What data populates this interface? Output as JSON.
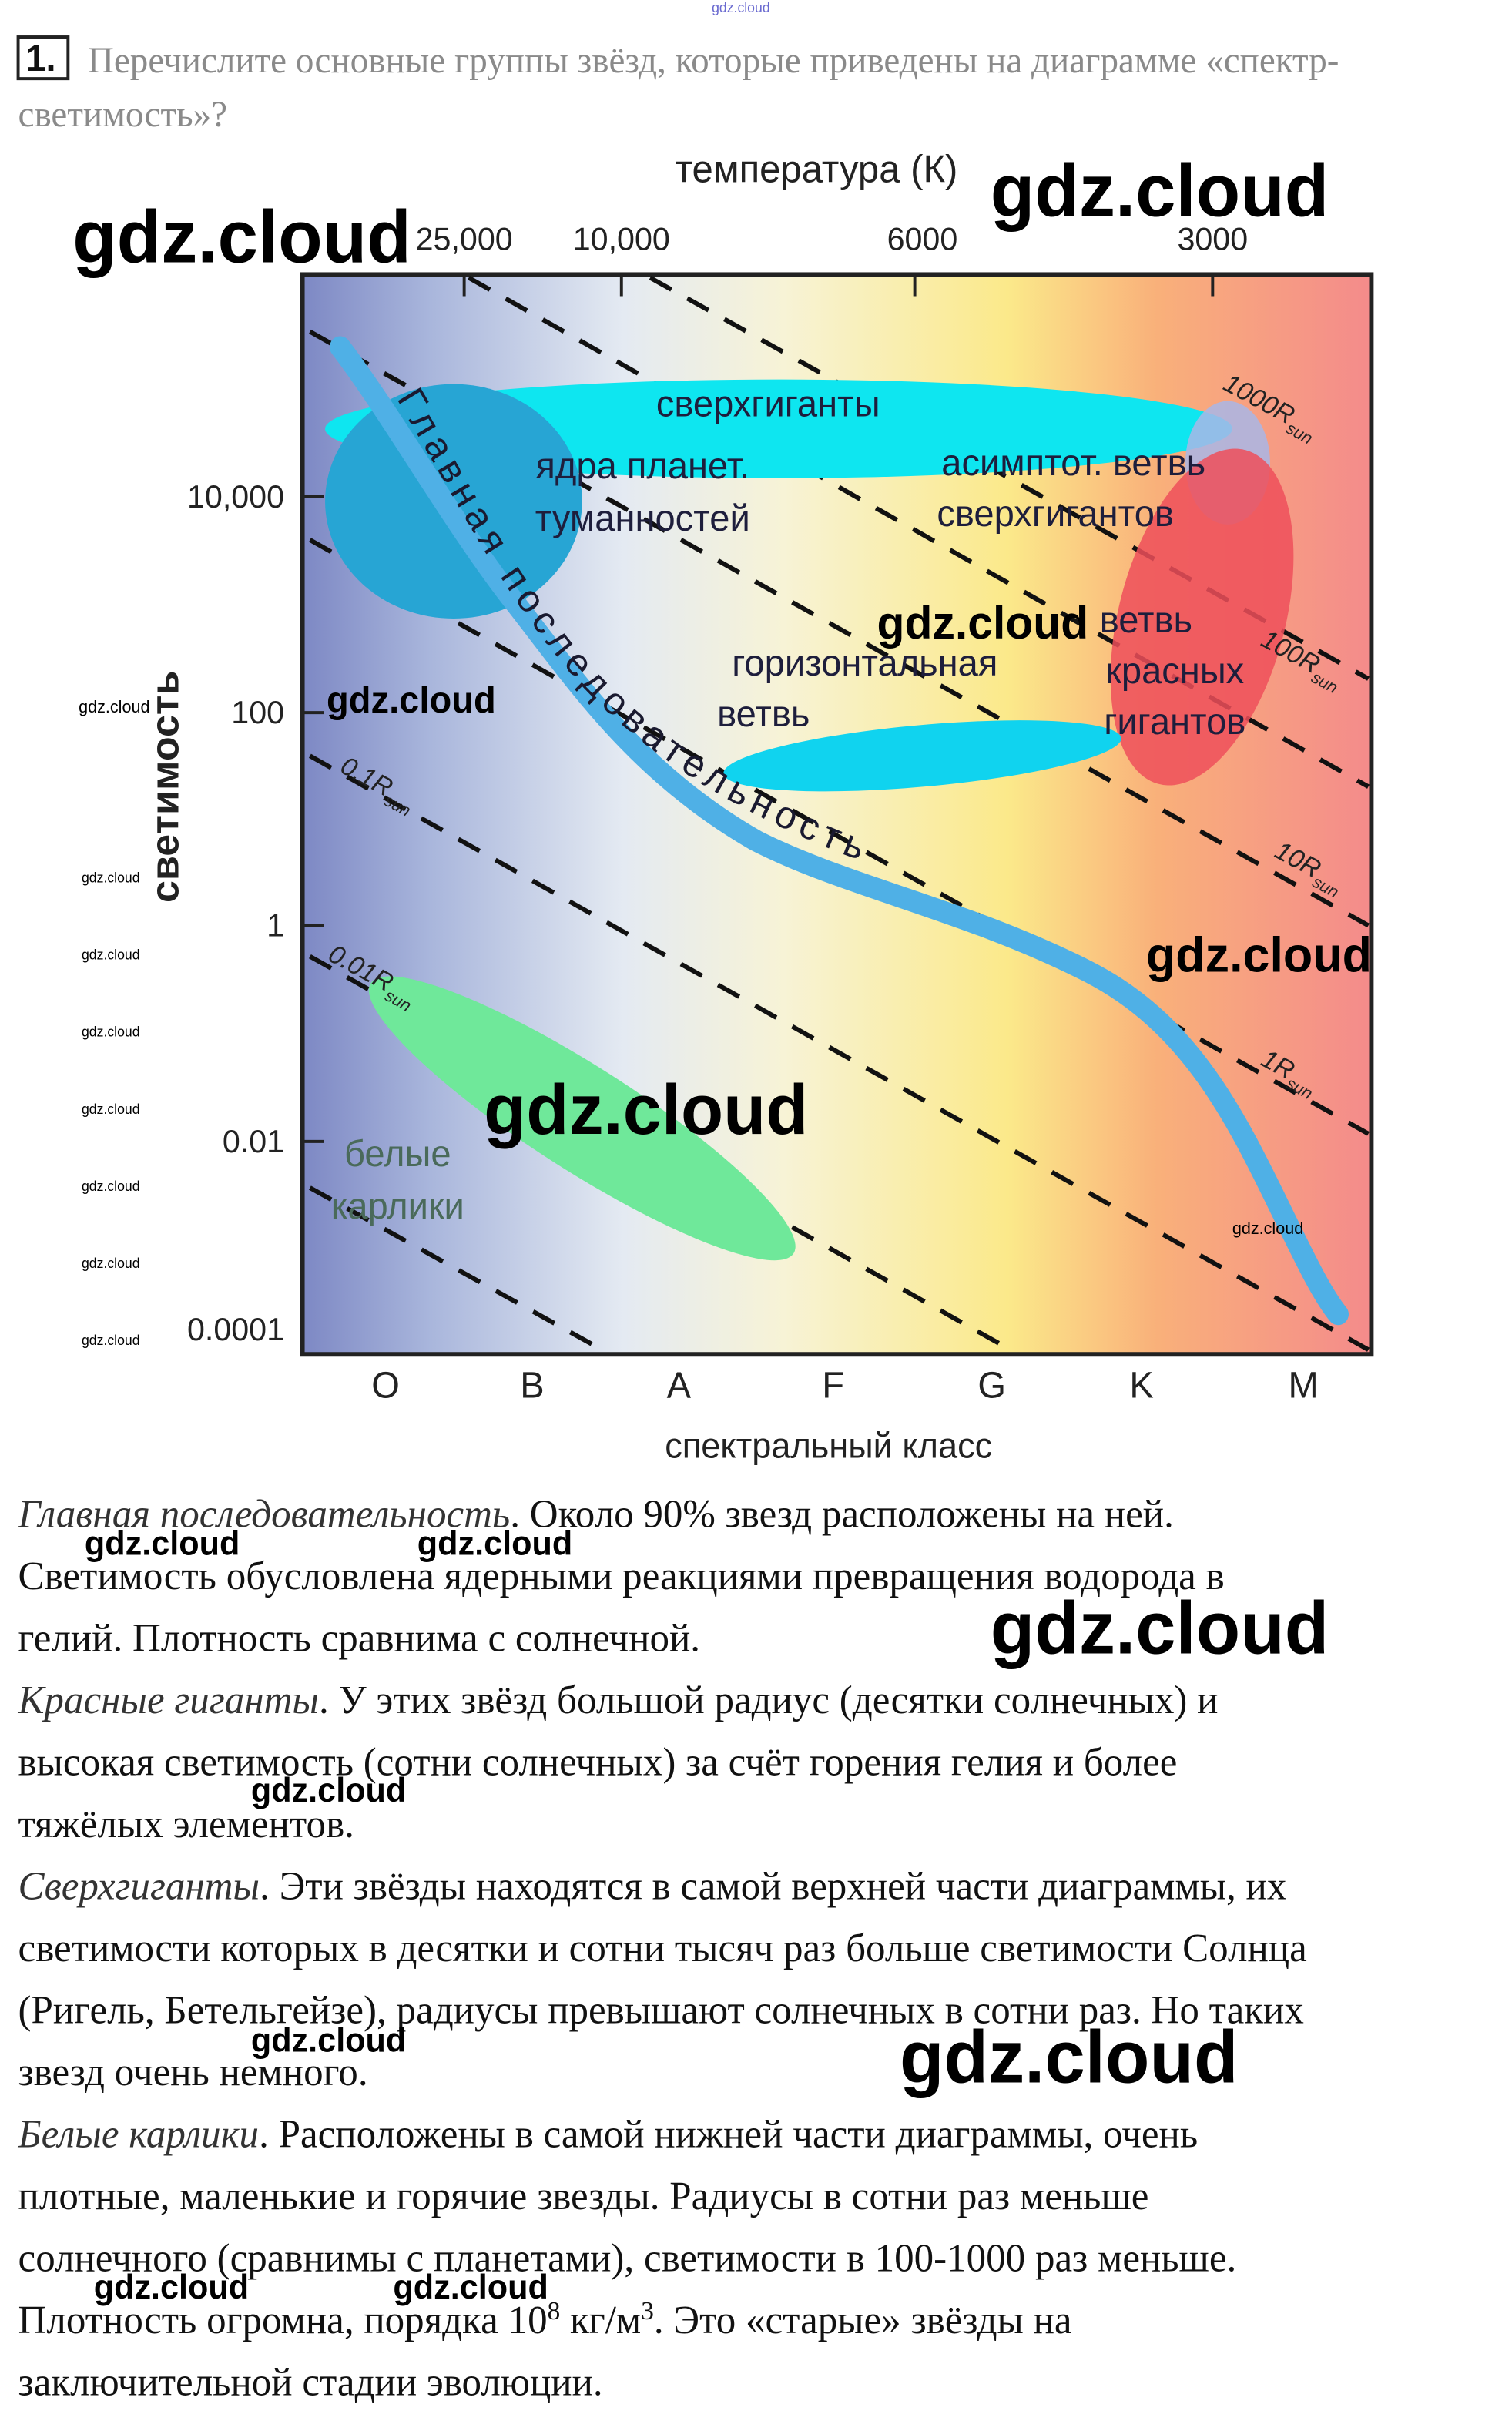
{
  "header_mark": "gdz.cloud",
  "question": {
    "number": "1.",
    "lines": [
      "Перечислите основные группы звёзд, которые приведены на диаграмме «спектр-",
      "светимость»?"
    ]
  },
  "diagram": {
    "temperature_title": "температура (К)",
    "temperature_labels": [
      "25,000",
      "10,000",
      "6000",
      "3000"
    ],
    "luminosity_title": "светимость",
    "luminosity_labels": [
      "10,000",
      "100",
      "1",
      "0.01",
      "0.0001"
    ],
    "spectral_classes": [
      "O",
      "B",
      "A",
      "F",
      "G",
      "K",
      "M"
    ],
    "spectral_title": "спектральный класс",
    "radius_lines": [
      {
        "label": "1000R",
        "sub": "sun"
      },
      {
        "label": "100R",
        "sub": "sun"
      },
      {
        "label": "10R",
        "sub": "sun"
      },
      {
        "label": "1R",
        "sub": "sun"
      },
      {
        "label": "0.1R",
        "sub": "sun"
      },
      {
        "label": "0.01R",
        "sub": "sun"
      }
    ],
    "main_sequence": "Главная последовательность",
    "regions": {
      "supergiants": [
        "сверхгиганты"
      ],
      "nebula_nuclei": [
        "ядра планет.",
        "туманностей"
      ],
      "asymptotic_branch": [
        "асимптот. ветвь",
        "сверхгигантов"
      ],
      "horizontal_branch": [
        "горизонтальная",
        "ветвь"
      ],
      "red_giants": [
        "ветвь",
        "красных",
        "гигантов"
      ],
      "white_dwarfs": [
        "белые",
        "карлики"
      ]
    }
  },
  "answer": {
    "lines": [
      [
        {
          "text": "Главная последовательность",
          "style": "italic"
        },
        {
          "text": ". Около 90% звезд расположены на ней.",
          "style": "normal"
        }
      ],
      [
        {
          "text": "Светимость обусловлена ядерными реакциями превращения водорода в",
          "style": "normal"
        }
      ],
      [
        {
          "text": "гелий. Плотность сравнима с солнечной.",
          "style": "normal"
        }
      ],
      [
        {
          "text": "Красные гиганты",
          "style": "italic"
        },
        {
          "text": ". У этих звёзд большой радиус (десятки солнечных) и",
          "style": "normal"
        }
      ],
      [
        {
          "text": "высокая светимость (сотни солнечных) за счёт горения гелия и более",
          "style": "normal"
        }
      ],
      [
        {
          "text": "тяжёлых элементов.",
          "style": "normal"
        }
      ],
      [
        {
          "text": "Сверхгиганты",
          "style": "italic"
        },
        {
          "text": ".  Эти звёзды находятся в самой верхней части диаграммы, их",
          "style": "normal"
        }
      ],
      [
        {
          "text": "светимости которых в десятки и сотни тысяч раз больше светимости Солнца",
          "style": "normal"
        }
      ],
      [
        {
          "text": "(Ригель, Бетельгейзе), радиусы превышают солнечных в сотни раз. Но таких",
          "style": "normal"
        }
      ],
      [
        {
          "text": "звезд очень немного.",
          "style": "normal"
        }
      ],
      [
        {
          "text": "Белые карлики",
          "style": "italic"
        },
        {
          "text": ". Расположены в самой нижней части диаграммы, очень",
          "style": "normal"
        }
      ],
      [
        {
          "text": "плотные, маленькие и горячие звезды. Радиусы в сотни раз меньше",
          "style": "normal"
        }
      ],
      [
        {
          "text": "солнечного (сравнимы с планетами), светимости в 100-1000 раз меньше.",
          "style": "normal"
        }
      ],
      [
        {
          "text": "Плотность огромна, порядка 10",
          "style": "normal"
        },
        {
          "text": "8",
          "style": "sup"
        },
        {
          "text": " кг/м",
          "style": "normal"
        },
        {
          "text": "3",
          "style": "sup"
        },
        {
          "text": ". Это «старые» звёзды на",
          "style": "normal"
        }
      ],
      [
        {
          "text": "заключительной стадии эволюции.",
          "style": "normal"
        }
      ]
    ]
  },
  "watermark": "gdz.cloud"
}
